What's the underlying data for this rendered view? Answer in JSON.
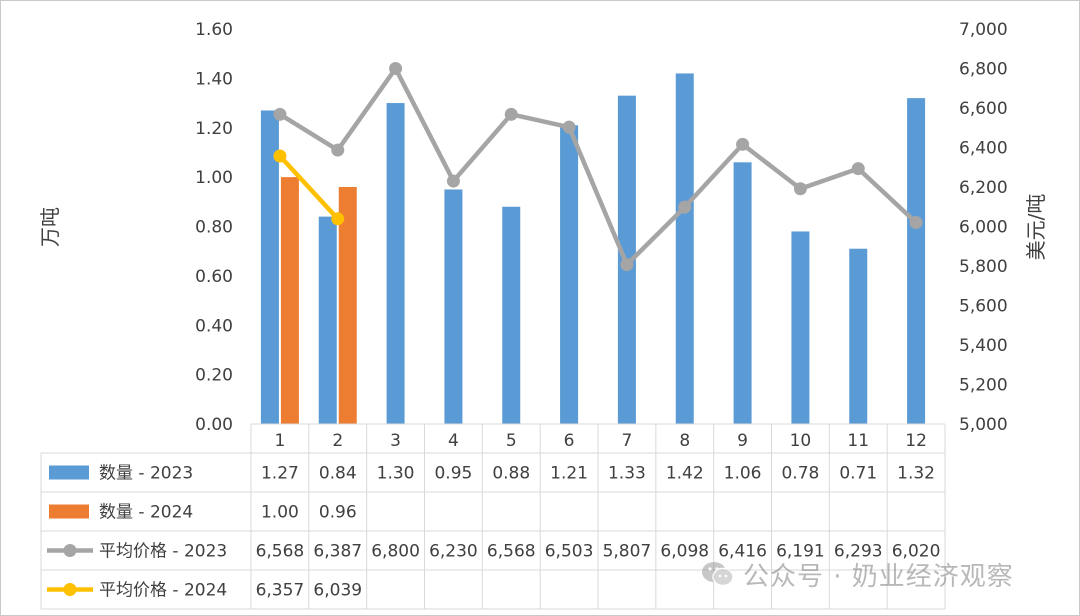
{
  "chart_data": {
    "type": "bar",
    "categories": [
      "1",
      "2",
      "3",
      "4",
      "5",
      "6",
      "7",
      "8",
      "9",
      "10",
      "11",
      "12"
    ],
    "y_left": {
      "label": "万吨",
      "ylim": [
        0,
        1.6
      ],
      "ticks": [
        "0.00",
        "0.20",
        "0.40",
        "0.60",
        "0.80",
        "1.00",
        "1.20",
        "1.40",
        "1.60"
      ]
    },
    "y_right": {
      "label": "美元/吨",
      "ylim": [
        5000,
        7000
      ],
      "ticks": [
        "5,000",
        "5,200",
        "5,400",
        "5,600",
        "5,800",
        "6,000",
        "6,200",
        "6,400",
        "6,600",
        "6,800",
        "7,000"
      ]
    },
    "bar_series": [
      {
        "name": "数量 - 2023",
        "color": "#5b9bd5",
        "values": [
          1.27,
          0.84,
          1.3,
          0.95,
          0.88,
          1.21,
          1.33,
          1.42,
          1.06,
          0.78,
          0.71,
          1.32
        ],
        "labels": [
          "1.27",
          "0.84",
          "1.30",
          "0.95",
          "0.88",
          "1.21",
          "1.33",
          "1.42",
          "1.06",
          "0.78",
          "0.71",
          "1.32"
        ]
      },
      {
        "name": "数量 - 2024",
        "color": "#ed7d31",
        "values": [
          1.0,
          0.96,
          null,
          null,
          null,
          null,
          null,
          null,
          null,
          null,
          null,
          null
        ],
        "labels": [
          "1.00",
          "0.96",
          "",
          "",
          "",
          "",
          "",
          "",
          "",
          "",
          "",
          ""
        ]
      }
    ],
    "line_series": [
      {
        "name": "平均价格 - 2023",
        "color": "#a5a5a5",
        "values": [
          6568,
          6387,
          6800,
          6230,
          6568,
          6503,
          5807,
          6098,
          6416,
          6191,
          6293,
          6020
        ],
        "labels": [
          "6,568",
          "6,387",
          "6,800",
          "6,230",
          "6,568",
          "6,503",
          "5,807",
          "6,098",
          "6,416",
          "6,191",
          "6,293",
          "6,020"
        ]
      },
      {
        "name": "平均价格 - 2024",
        "color": "#ffc000",
        "values": [
          6357,
          6039,
          null,
          null,
          null,
          null,
          null,
          null,
          null,
          null,
          null,
          null
        ],
        "labels": [
          "6,357",
          "6,039",
          "",
          "",
          "",
          "",
          "",
          "",
          "",
          "",
          "",
          ""
        ]
      }
    ]
  },
  "watermark": {
    "text": "公众号 · 奶业经济观察",
    "icon": "wechat-icon"
  }
}
